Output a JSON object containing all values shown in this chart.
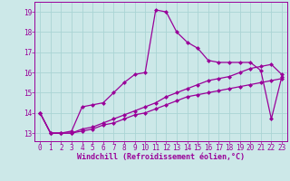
{
  "xlabel": "Windchill (Refroidissement éolien,°C)",
  "ylabel": "",
  "xlim": [
    -0.5,
    23.5
  ],
  "ylim": [
    12.6,
    19.5
  ],
  "xticks": [
    0,
    1,
    2,
    3,
    4,
    5,
    6,
    7,
    8,
    9,
    10,
    11,
    12,
    13,
    14,
    15,
    16,
    17,
    18,
    19,
    20,
    21,
    22,
    23
  ],
  "yticks": [
    13,
    14,
    15,
    16,
    17,
    18,
    19
  ],
  "bg_color": "#cce8e8",
  "grid_color": "#aad4d4",
  "line_color": "#990099",
  "line1": [
    14.0,
    13.0,
    13.0,
    13.1,
    14.3,
    14.4,
    14.5,
    15.0,
    15.5,
    15.9,
    16.0,
    19.1,
    19.0,
    18.0,
    17.5,
    17.2,
    16.6,
    16.5,
    16.5,
    16.5,
    16.5,
    16.1,
    13.7,
    15.8
  ],
  "line2": [
    14.0,
    13.0,
    13.0,
    13.0,
    13.2,
    13.3,
    13.5,
    13.7,
    13.9,
    14.1,
    14.3,
    14.5,
    14.8,
    15.0,
    15.2,
    15.4,
    15.6,
    15.7,
    15.8,
    16.0,
    16.2,
    16.3,
    16.4,
    15.9
  ],
  "line3": [
    14.0,
    13.0,
    13.0,
    13.0,
    13.1,
    13.2,
    13.4,
    13.5,
    13.7,
    13.9,
    14.0,
    14.2,
    14.4,
    14.6,
    14.8,
    14.9,
    15.0,
    15.1,
    15.2,
    15.3,
    15.4,
    15.5,
    15.6,
    15.7
  ],
  "marker_size": 2.5,
  "linewidth": 0.9,
  "tick_fontsize": 5.5,
  "xlabel_fontsize": 6.0
}
